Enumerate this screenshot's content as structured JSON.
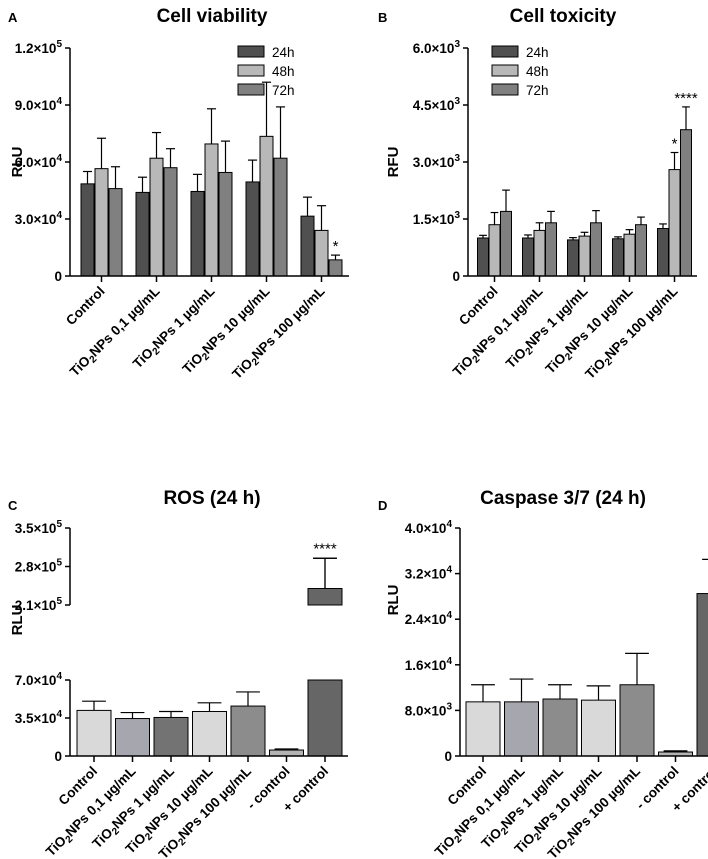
{
  "chart_data": [
    {
      "panel": "A",
      "type": "bar",
      "title": "Cell viability",
      "ylabel": "RLU",
      "ylim": [
        0,
        120000
      ],
      "yticks": [
        0,
        30000,
        60000,
        90000,
        120000
      ],
      "ytick_labels": [
        "0",
        "3.0×10⁴",
        "6.0×10⁴",
        "9.0×10⁴",
        "1.2×10⁵"
      ],
      "categories": [
        "Control",
        "TiO₂NPs 0,1 µg/mL",
        "TiO₂NPs 1 µg/mL",
        "TiO₂NPs 10 µg/mL",
        "TiO₂NPs 100 µg/mL"
      ],
      "series": [
        {
          "name": "24h",
          "color": "#505050",
          "values": [
            48500,
            44000,
            44500,
            49500,
            31500
          ],
          "errors": [
            6500,
            8000,
            9000,
            11500,
            10000
          ]
        },
        {
          "name": "48h",
          "color": "#b8b8b8",
          "values": [
            56500,
            62000,
            69500,
            73500,
            24000
          ],
          "errors": [
            16000,
            13500,
            18500,
            28500,
            13000
          ]
        },
        {
          "name": "72h",
          "color": "#808080",
          "values": [
            46000,
            57000,
            54500,
            62000,
            8500
          ],
          "errors": [
            11500,
            10000,
            16500,
            27000,
            2500
          ]
        }
      ],
      "annotations": [
        {
          "category": 4,
          "series": 2,
          "text": "*"
        }
      ],
      "legend": "top-right"
    },
    {
      "panel": "B",
      "type": "bar",
      "title": "Cell toxicity",
      "ylabel": "RFU",
      "ylim": [
        0,
        6000
      ],
      "yticks": [
        0,
        1500,
        3000,
        4500,
        6000
      ],
      "ytick_labels": [
        "0",
        "1.5×10³",
        "3.0×10³",
        "4.5×10³",
        "6.0×10³"
      ],
      "categories": [
        "Control",
        "TiO₂NPs 0,1 µg/mL",
        "TiO₂NPs 1 µg/mL",
        "TiO₂NPs 10 µg/mL",
        "TiO₂NPs 100 µg/mL"
      ],
      "series": [
        {
          "name": "24h",
          "color": "#505050",
          "values": [
            1000,
            1000,
            950,
            980,
            1250
          ],
          "errors": [
            70,
            80,
            60,
            50,
            120
          ]
        },
        {
          "name": "48h",
          "color": "#b8b8b8",
          "values": [
            1350,
            1200,
            1050,
            1100,
            2800
          ],
          "errors": [
            320,
            200,
            100,
            120,
            450
          ]
        },
        {
          "name": "72h",
          "color": "#808080",
          "values": [
            1700,
            1400,
            1400,
            1350,
            3850
          ],
          "errors": [
            560,
            300,
            320,
            200,
            600
          ]
        }
      ],
      "annotations": [
        {
          "category": 4,
          "series": 1,
          "text": "*"
        },
        {
          "category": 4,
          "series": 2,
          "text": "****"
        }
      ],
      "legend": "top-left"
    },
    {
      "panel": "C",
      "type": "bar",
      "title": "ROS (24 h)",
      "ylabel": "RLU",
      "broken_axis": {
        "lower": [
          0,
          70000
        ],
        "upper": [
          210000,
          350000
        ]
      },
      "yticks": [
        0,
        35000,
        70000,
        210000,
        280000,
        350000
      ],
      "ytick_labels": [
        "0",
        "3.5×10⁴",
        "7.0×10⁴",
        "2.1×10⁵",
        "2.8×10⁵",
        "3.5×10⁵"
      ],
      "categories": [
        "Control",
        "TiO₂NPs 0,1 µg/mL",
        "TiO₂NPs 1 µg/mL",
        "TiO₂NPs 10 µg/mL",
        "TiO₂NPs 100 µg/mL",
        "- control",
        "+ control"
      ],
      "values": [
        42000,
        34500,
        35500,
        41000,
        46000,
        5500,
        240000
      ],
      "errors": [
        8500,
        5500,
        5500,
        8000,
        13000,
        1000,
        55000
      ],
      "colors": [
        "#d9d9d9",
        "#a6a6ae",
        "#737373",
        "#d9d9d9",
        "#8c8c8c",
        "#b3b3b3",
        "#666666"
      ],
      "annotations": [
        {
          "category": 6,
          "text": "****"
        }
      ]
    },
    {
      "panel": "D",
      "type": "bar",
      "title": "Caspase 3/7 (24 h)",
      "ylabel": "RLU",
      "ylim": [
        0,
        40000
      ],
      "yticks": [
        0,
        8000,
        16000,
        24000,
        32000,
        40000
      ],
      "ytick_labels": [
        "0",
        "8.0×10³",
        "1.6×10⁴",
        "2.4×10⁴",
        "3.2×10⁴",
        "4.0×10⁴"
      ],
      "categories": [
        "Control",
        "TiO₂NPs 0,1 µg/mL",
        "TiO₂NPs 1 µg/mL",
        "TiO₂NPs 10 µg/mL",
        "TiO₂NPs 100 µg/mL",
        "- control",
        "+ control"
      ],
      "values": [
        9500,
        9500,
        10000,
        9800,
        12500,
        700,
        28500
      ],
      "errors": [
        3000,
        4000,
        2500,
        2500,
        5500,
        200,
        6000
      ],
      "colors": [
        "#d9d9d9",
        "#a6a6ae",
        "#8c8c8c",
        "#d9d9d9",
        "#8c8c8c",
        "#b3b3b3",
        "#666666"
      ],
      "annotations": [
        {
          "category": 6,
          "text": "*"
        }
      ]
    }
  ]
}
